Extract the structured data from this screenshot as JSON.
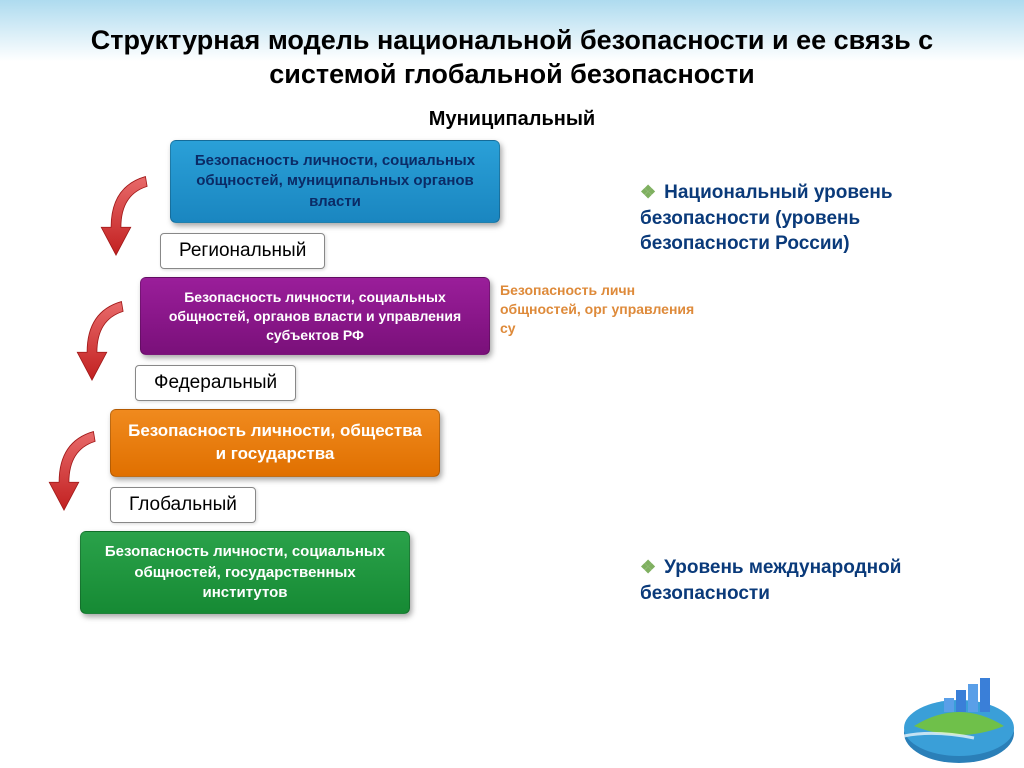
{
  "title": "Структурная модель национальной безопасности и ее связь с системой глобальной безопасности",
  "subtitle": "Муниципальный",
  "levels": {
    "municipal": {
      "block_text": "Безопасность личности, социальных общностей, муниципальных органов власти",
      "color": "#2aa0d8",
      "gradient_to": "#1a86c0",
      "text_color": "#0b2b66"
    },
    "regional": {
      "label": "Региональный",
      "block_text": "Безопасность личности, социальных общностей,  органов власти и управления субъектов РФ",
      "color": "#9a1e9a",
      "gradient_to": "#7a107a",
      "overflow_text": "Безопасность личн общностей,  орг управления су",
      "overflow_color": "#de8a3a"
    },
    "federal": {
      "label": "Федеральный",
      "block_text": "Безопасность  личности, общества и государства",
      "color": "#f08a1e",
      "gradient_to": "#e07000"
    },
    "global": {
      "label": "Глобальный",
      "block_text": "Безопасность личности, социальных  общностей, государственных  институтов",
      "color": "#2aa24a",
      "gradient_to": "#168a34"
    }
  },
  "side_notes": {
    "national": {
      "text": "Национальный уровень безопасности (уровень безопасности России)",
      "color": "#0a3a7a",
      "bullet_color": "#7fb060"
    },
    "international": {
      "text": "Уровень международной безопасности",
      "color": "#0a3a7a",
      "bullet_color": "#7fb060"
    }
  },
  "arrow": {
    "color": "#d33a3a",
    "count": 3
  },
  "background": {
    "sky": "#aedbef",
    "page": "#ffffff"
  }
}
